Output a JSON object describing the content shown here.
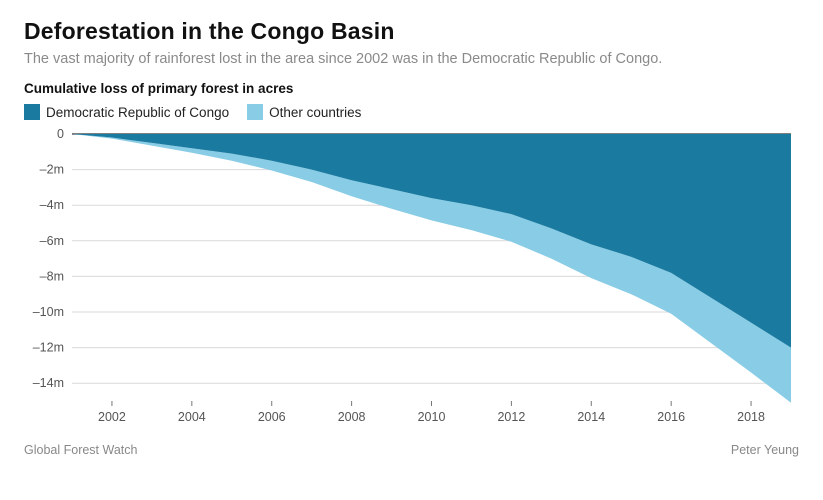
{
  "title": "Deforestation in the Congo Basin",
  "subtitle": "The vast majority of rainforest lost in the area since 2002 was in the Democratic Republic of Congo.",
  "y_axis_title": "Cumulative loss of primary forest in acres",
  "legend": [
    {
      "label": "Democratic Republic of Congo",
      "color": "#1a7aa0"
    },
    {
      "label": "Other countries",
      "color": "#88cce5"
    }
  ],
  "source": "Global Forest Watch",
  "credit": "Peter Yeung",
  "chart": {
    "type": "area",
    "background_color": "#ffffff",
    "grid_color": "#d9d9d9",
    "zero_line_color": "#333333",
    "axis_label_color": "#555555",
    "axis_label_fontsize": 12.5,
    "xlim": [
      2001,
      2019
    ],
    "ylim": [
      -15000000,
      0
    ],
    "y_ticks": [
      0,
      -2000000,
      -4000000,
      -6000000,
      -8000000,
      -10000000,
      -12000000,
      -14000000
    ],
    "y_tick_labels": [
      "0",
      "–2m",
      "–4m",
      "–6m",
      "–8m",
      "–10m",
      "–12m",
      "–14m"
    ],
    "x_ticks": [
      2002,
      2004,
      2006,
      2008,
      2010,
      2012,
      2014,
      2016,
      2018
    ],
    "years": [
      2001,
      2002,
      2003,
      2004,
      2005,
      2006,
      2007,
      2008,
      2009,
      2010,
      2011,
      2012,
      2013,
      2014,
      2015,
      2016,
      2017,
      2018,
      2019
    ],
    "series": {
      "drc": {
        "color": "#1a7aa0",
        "values": [
          0,
          -200000,
          -500000,
          -800000,
          -1100000,
          -1500000,
          -2000000,
          -2600000,
          -3100000,
          -3600000,
          -4000000,
          -4500000,
          -5300000,
          -6200000,
          -6900000,
          -7800000,
          -9200000,
          -10600000,
          -12000000
        ]
      },
      "other": {
        "color": "#88cce5",
        "values": [
          0,
          -60000,
          -150000,
          -250000,
          -400000,
          -550000,
          -700000,
          -900000,
          -1100000,
          -1250000,
          -1400000,
          -1550000,
          -1700000,
          -1900000,
          -2100000,
          -2300000,
          -2550000,
          -2800000,
          -3100000
        ]
      }
    }
  }
}
